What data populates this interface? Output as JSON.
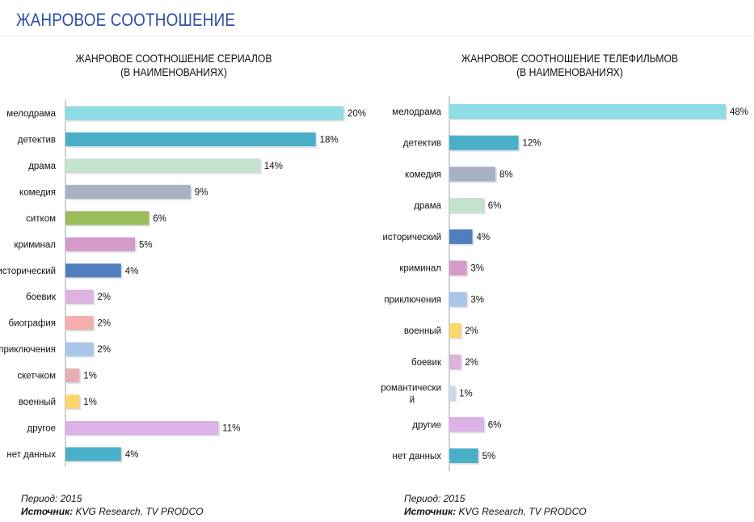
{
  "page": {
    "title": "ЖАНРОВОЕ СООТНОШЕНИЕ"
  },
  "colors": {
    "title": "#2f4fa3",
    "label_text": "#111111",
    "grid_line": "#9aa0aa"
  },
  "chart_data": [
    {
      "type": "bar",
      "orientation": "horizontal",
      "title": "ЖАНРОВОЕ СООТНОШЕНИЕ СЕРИАЛОВ",
      "subtitle": "(В НАИМЕНОВАНИЯХ)",
      "categories": [
        "мелодрама",
        "детектив",
        "драма",
        "комедия",
        "ситком",
        "криминал",
        "исторический",
        "боевик",
        "биография",
        "приключения",
        "скетчком",
        "военный",
        "другое",
        "нет данных"
      ],
      "values": [
        20,
        18,
        14,
        9,
        6,
        5,
        4,
        2,
        2,
        2,
        1,
        1,
        11,
        4
      ],
      "value_labels": [
        "20%",
        "18%",
        "14%",
        "9%",
        "6%",
        "5%",
        "4%",
        "2%",
        "2%",
        "2%",
        "1%",
        "1%",
        "11%",
        "4%"
      ],
      "bar_colors": [
        "#8fdde4",
        "#4aafc8",
        "#c4e3cd",
        "#a7b1c3",
        "#9bbd5a",
        "#d69bc9",
        "#4f7fbf",
        "#dcb3de",
        "#f5adad",
        "#a7c6e8",
        "#e7aeb1",
        "#fbd76a",
        "#ddb2e8",
        "#4aafc8"
      ],
      "unit": "%",
      "xlim": [
        0,
        20
      ],
      "xlabel": "",
      "ylabel": "",
      "grid": false,
      "legend": "none"
    },
    {
      "type": "bar",
      "orientation": "horizontal",
      "title": "ЖАНРОВОЕ СООТНОШЕНИЕ ТЕЛЕФИЛЬМОВ",
      "subtitle": "(В НАИМЕНОВАНИЯХ)",
      "categories": [
        "мелодрама",
        "детектив",
        "комедия",
        "драма",
        "исторический",
        "криминал",
        "приключения",
        "военный",
        "боевик",
        "романтически й",
        "другие",
        "нет данных"
      ],
      "values": [
        48,
        12,
        8,
        6,
        4,
        3,
        3,
        2,
        2,
        1,
        6,
        5
      ],
      "value_labels": [
        "48%",
        "12%",
        "8%",
        "6%",
        "4%",
        "3%",
        "3%",
        "2%",
        "2%",
        "1%",
        "6%",
        "5%"
      ],
      "bar_colors": [
        "#8fdde4",
        "#4aafc8",
        "#a7b1c3",
        "#c4e3cd",
        "#4f7fbf",
        "#d69bc9",
        "#a7c6e8",
        "#fbd76a",
        "#dcb3de",
        "#c9daf1",
        "#ddb2e8",
        "#4aafc8"
      ],
      "unit": "%",
      "xlim": [
        0,
        48
      ],
      "xlabel": "",
      "ylabel": "",
      "grid": false,
      "legend": "none"
    }
  ],
  "footers": [
    {
      "period": "Период: 2015",
      "source_label": "Источник:",
      "source": "KVG Research, TV  PRODCO"
    },
    {
      "period": "Период: 2015",
      "source_label": "Источник:",
      "source": "KVG Research, TV  PRODCO"
    }
  ]
}
